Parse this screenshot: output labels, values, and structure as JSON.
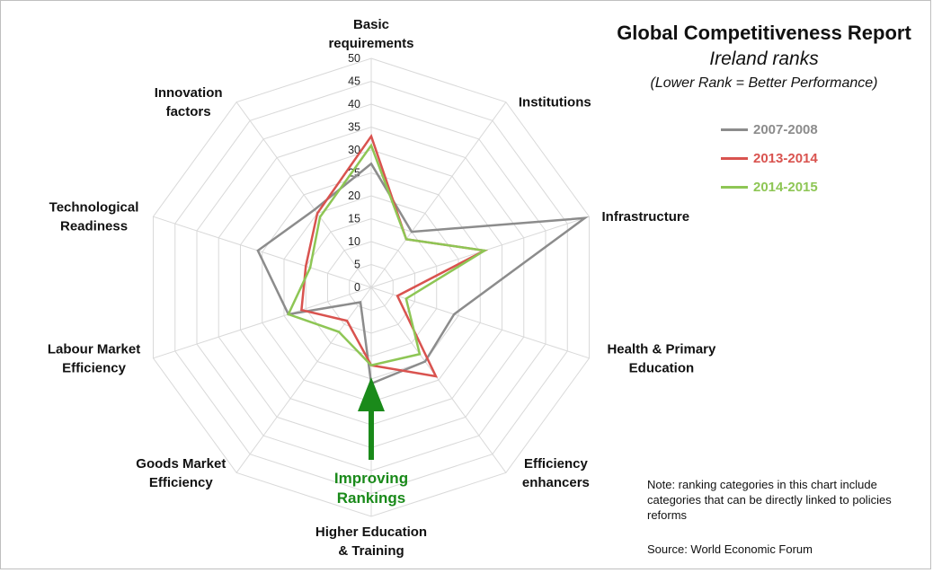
{
  "title": {
    "main": "Global Competitiveness Report",
    "sub": "Ireland ranks",
    "note": "(Lower Rank = Better Performance)"
  },
  "annotation": {
    "line1": "Improving",
    "line2": "Rankings",
    "color": "#1a8a1a"
  },
  "footnote": {
    "note": "Note: ranking categories in this chart include categories that can be directly linked to policies reforms",
    "source": "Source: World Economic Forum"
  },
  "chart_data": {
    "type": "radar",
    "title": "Global Competitiveness Report",
    "subtitle": "Ireland ranks",
    "rmin": 0,
    "rmax": 50,
    "tick_step": 5,
    "ticks": [
      "0",
      "5",
      "10",
      "15",
      "20",
      "25",
      "30",
      "35",
      "40",
      "45",
      "50"
    ],
    "legend_position": "right",
    "grid": true,
    "categories": [
      [
        "Basic",
        "requirements"
      ],
      [
        "Institutions"
      ],
      [
        "Infrastructure"
      ],
      [
        "Health & Primary",
        "Education"
      ],
      [
        "Efficiency",
        "enhancers"
      ],
      [
        "Higher Education",
        "& Training"
      ],
      [
        "Goods Market",
        "Efficiency"
      ],
      [
        "Labour Market",
        "Efficiency"
      ],
      [
        "Technological",
        "Readiness"
      ],
      [
        "Innovation",
        "factors"
      ]
    ],
    "series": [
      {
        "name": "2007-2008",
        "color": "#8c8c8c",
        "values": [
          27,
          15,
          49,
          19,
          20,
          21,
          4,
          19,
          26,
          21
        ]
      },
      {
        "name": "2013-2014",
        "color": "#d9534f",
        "values": [
          33,
          13,
          26,
          6,
          24,
          17,
          9,
          16,
          15,
          20
        ]
      },
      {
        "name": "2014-2015",
        "color": "#8ec655",
        "values": [
          31,
          13,
          26,
          8,
          18,
          17,
          12,
          19,
          14,
          19
        ]
      }
    ]
  }
}
